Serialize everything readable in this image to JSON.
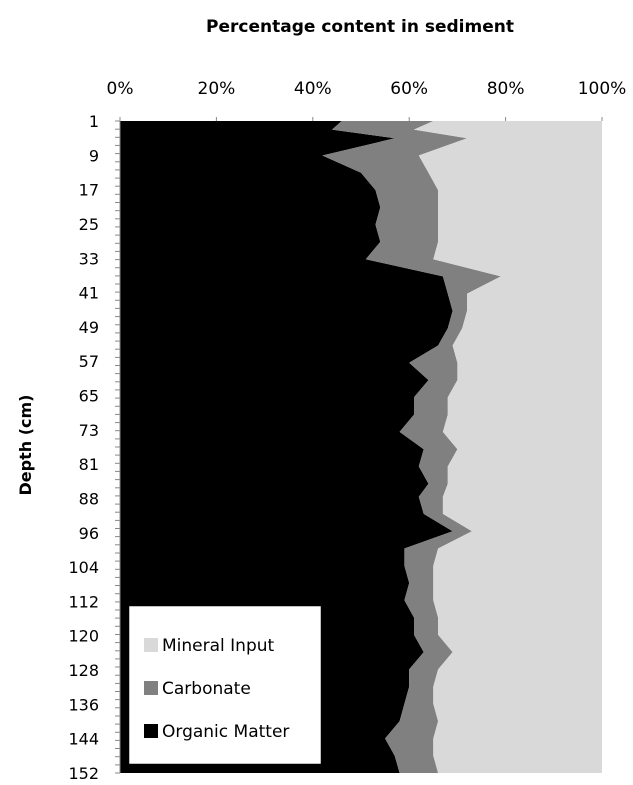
{
  "chart_data": {
    "type": "area",
    "orientation": "horizontal-stacked-percent",
    "title": "Percentage content in sediment",
    "xlabel": "",
    "ylabel": "Depth (cm)",
    "xlim": [
      0,
      100
    ],
    "x_tick_labels": [
      "0%",
      "20%",
      "40%",
      "60%",
      "80%",
      "100%"
    ],
    "y_tick_labels": [
      "1",
      "9",
      "17",
      "25",
      "33",
      "41",
      "49",
      "57",
      "65",
      "73",
      "81",
      "88",
      "96",
      "104",
      "112",
      "120",
      "128",
      "136",
      "144",
      "152"
    ],
    "legend_position": "bottom-left",
    "depth": [
      1,
      3,
      5,
      9,
      13,
      17,
      21,
      25,
      29,
      33,
      37,
      41,
      45,
      49,
      53,
      57,
      61,
      65,
      69,
      73,
      77,
      81,
      85,
      88,
      92,
      96,
      100,
      104,
      108,
      112,
      116,
      120,
      124,
      128,
      132,
      136,
      140,
      144,
      148,
      152
    ],
    "series": [
      {
        "name": "Organic Matter",
        "color": "#000000",
        "values": [
          46,
          44,
          57,
          42,
          50,
          53,
          54,
          53,
          54,
          51,
          67,
          68,
          69,
          68,
          66,
          60,
          64,
          61,
          61,
          58,
          63,
          62,
          64,
          62,
          63,
          69,
          59,
          59,
          60,
          59,
          61,
          61,
          63,
          60,
          60,
          59,
          58,
          55,
          57,
          58
        ]
      },
      {
        "name": "Carbonate",
        "color": "#808080",
        "values": [
          19,
          17,
          15,
          20,
          14,
          13,
          12,
          13,
          12,
          14,
          12,
          4,
          3,
          3,
          3,
          10,
          6,
          7,
          7,
          9,
          7,
          6,
          4,
          5,
          4,
          4,
          7,
          6,
          5,
          6,
          5,
          5,
          6,
          6,
          5,
          6,
          8,
          10,
          8,
          8
        ]
      },
      {
        "name": "Mineral Input",
        "color": "#d9d9d9",
        "values": [
          35,
          39,
          28,
          38,
          36,
          34,
          34,
          34,
          34,
          35,
          21,
          28,
          28,
          29,
          31,
          30,
          30,
          32,
          32,
          33,
          30,
          32,
          32,
          33,
          33,
          27,
          34,
          35,
          35,
          35,
          34,
          34,
          31,
          34,
          35,
          35,
          34,
          35,
          35,
          34
        ]
      }
    ]
  }
}
